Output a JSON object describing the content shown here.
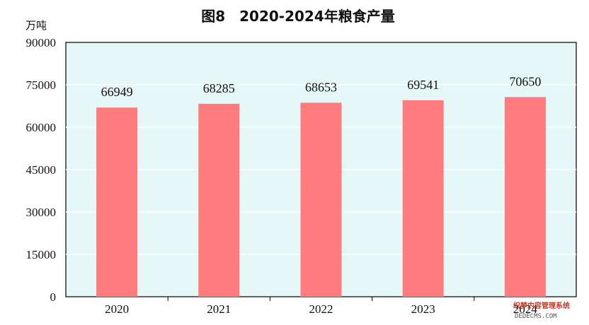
{
  "chart_data": {
    "type": "bar",
    "title": "图8　2020-2024年粮食产量",
    "ylabel": "万吨",
    "xlabel": "",
    "categories": [
      "2020",
      "2021",
      "2022",
      "2023",
      "2024"
    ],
    "series": [
      {
        "values": [
          66949,
          68285,
          68653,
          69541,
          70650
        ]
      }
    ],
    "data_labels": [
      "66949",
      "68285",
      "68653",
      "69541",
      "70650"
    ],
    "y_ticks": [
      0,
      15000,
      30000,
      45000,
      60000,
      75000,
      90000
    ],
    "ylim": [
      0,
      90000
    ],
    "grid": true,
    "legend": "none"
  },
  "colors": {
    "bar": "#ff7b7e",
    "plot_background": "#e6f7f7",
    "grid": "#ffffff",
    "axis": "#000000"
  },
  "watermark": {
    "line1": "织梦内容管理系统",
    "line2": "DEDECMS.COM"
  }
}
